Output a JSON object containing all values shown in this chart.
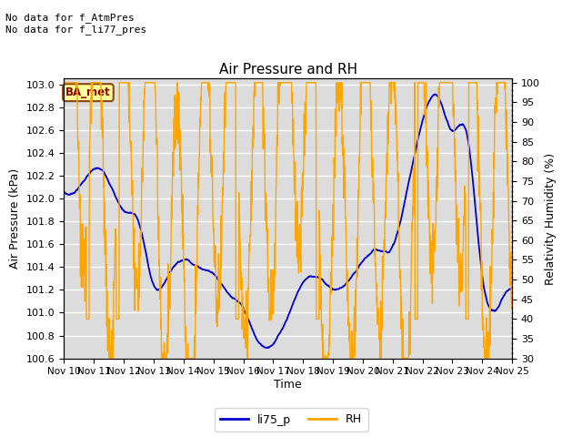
{
  "title": "Air Pressure and RH",
  "xlabel": "Time",
  "ylabel_left": "Air Pressure (kPa)",
  "ylabel_right": "Relativity Humidity (%)",
  "ylim_left": [
    100.6,
    103.05
  ],
  "ylim_right": [
    30,
    101
  ],
  "yticks_left": [
    100.6,
    100.8,
    101.0,
    101.2,
    101.4,
    101.6,
    101.8,
    102.0,
    102.2,
    102.4,
    102.6,
    102.8,
    103.0
  ],
  "yticks_right": [
    30,
    35,
    40,
    45,
    50,
    55,
    60,
    65,
    70,
    75,
    80,
    85,
    90,
    95,
    100
  ],
  "xtick_labels": [
    "Nov 10",
    "Nov 11",
    "Nov 12",
    "Nov 13",
    "Nov 14",
    "Nov 15",
    "Nov 16",
    "Nov 17",
    "Nov 18",
    "Nov 19",
    "Nov 20",
    "Nov 21",
    "Nov 22",
    "Nov 23",
    "Nov 24",
    "Nov 25"
  ],
  "annotation_text": "No data for f_AtmPres\nNo data for f_li77_pres",
  "legend_box_text": "BA_met",
  "legend_box_color": "#8b0000",
  "legend_box_bg": "#ffff99",
  "legend_box_edge": "#8b4513",
  "color_blue": "#0000cc",
  "color_orange": "#ffa500",
  "line_label_blue": "li75_p",
  "line_label_orange": "RH",
  "background_color": "#dcdcdc",
  "grid_color": "#ffffff",
  "n_points": 1500
}
